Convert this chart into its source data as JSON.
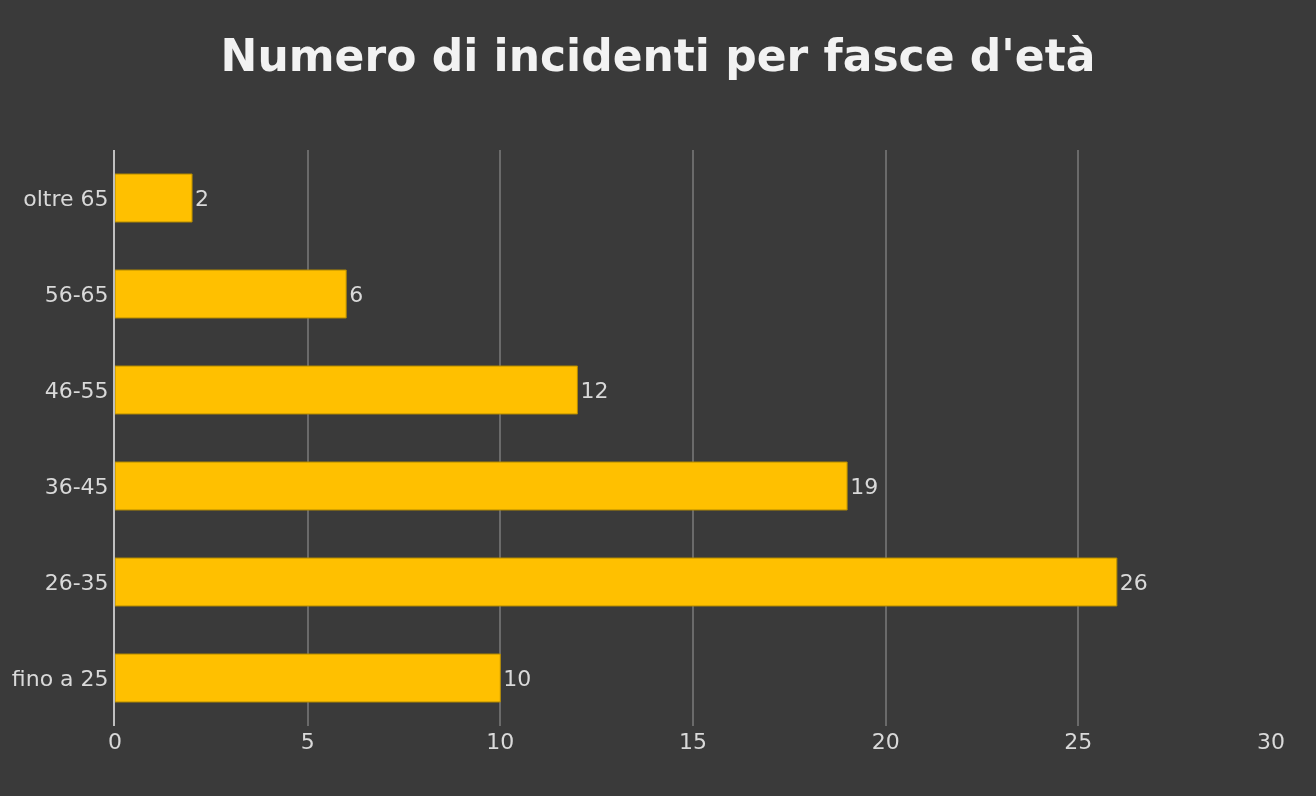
{
  "chart_data": {
    "type": "bar",
    "orientation": "horizontal",
    "title": "Numero di incidenti per fasce d'età",
    "categories": [
      "oltre 65",
      "56-65",
      "46-55",
      "36-45",
      "26-35",
      "fino a 25"
    ],
    "values": [
      2,
      6,
      12,
      19,
      26,
      10
    ],
    "color": "#ffc000",
    "xlim": [
      0,
      30
    ],
    "xticks": [
      0,
      5,
      10,
      15,
      20,
      25,
      30
    ],
    "grid": "x",
    "data_labels": true
  }
}
